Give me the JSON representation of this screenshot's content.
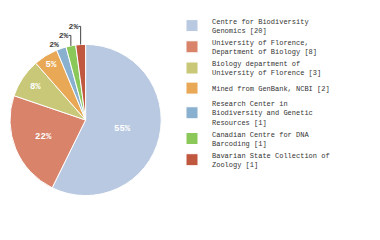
{
  "chart_data": {
    "type": "pie",
    "categories": [
      "Centre for Biodiversity\nGenomics [20]",
      "University of Florence,\nDepartment of Biology [8]",
      "Biology department of\nUniversity of Florence [3]",
      "Mined from GenBank, NCBI [2]",
      "Research Center in\nBiodiversity and Genetic\nResources [1]",
      "Canadian Centre for DNA\nBarcoding [1]",
      "Bavarian State Collection of\nZoology [1]"
    ],
    "values": [
      55,
      22,
      8,
      5,
      2,
      2,
      2
    ],
    "value_labels": [
      "55%",
      "22%",
      "8%",
      "5%",
      "2%",
      "2%",
      "2%"
    ],
    "colors": [
      "#b8c9e1",
      "#d9836a",
      "#c8c878",
      "#e8a855",
      "#8ab0d0",
      "#8bc85a",
      "#c05840"
    ],
    "data_labels": true,
    "legend": "right"
  }
}
